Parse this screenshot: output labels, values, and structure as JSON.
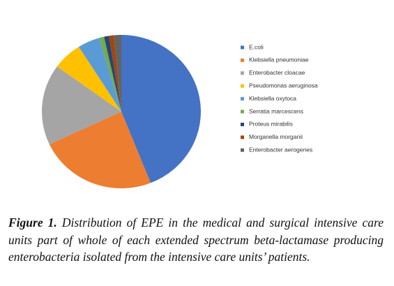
{
  "chart_data": {
    "type": "pie",
    "series": [
      {
        "name": "E.coli",
        "color": "#4472c4",
        "values": [
          44
        ]
      },
      {
        "name": "Klebsiella pneumoniae",
        "color": "#ed7d31",
        "values": [
          24
        ]
      },
      {
        "name": "Enterobacter cloacae",
        "color": "#a5a5a5",
        "values": [
          17
        ]
      },
      {
        "name": "Pseudomonas aeruginosa",
        "color": "#ffc000",
        "values": [
          6
        ]
      },
      {
        "name": "Klebsiella oxytoca",
        "color": "#5b9bd5",
        "values": [
          4.5
        ]
      },
      {
        "name": "Serratia marcescens",
        "color": "#70ad47",
        "values": [
          1
        ]
      },
      {
        "name": "Proteus mirabilis",
        "color": "#264478",
        "values": [
          1
        ]
      },
      {
        "name": "Morganella morganii",
        "color": "#9e480e",
        "values": [
          1
        ]
      },
      {
        "name": "Enterobacter aerogenes",
        "color": "#636363",
        "values": [
          1.5
        ]
      }
    ],
    "legend": "right"
  },
  "caption": {
    "label": "Figure 1.",
    "text": "Distribution of EPE in the medical and surgical intensive care units part of whole of each extended spectrum beta-lactamase producing enterobacteria isolated from the intensive care units’ patients."
  }
}
